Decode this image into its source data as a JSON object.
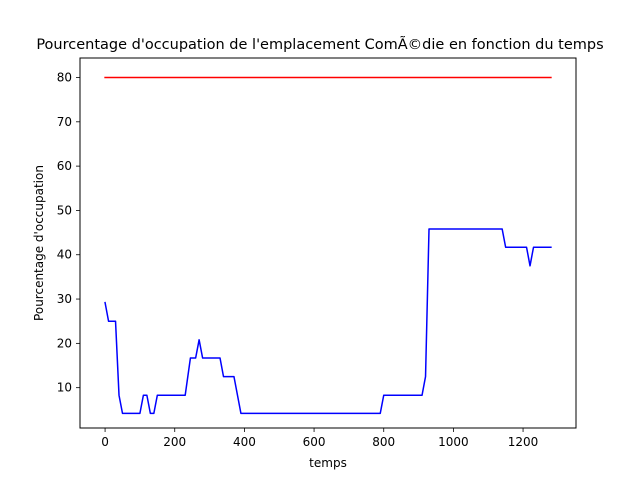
{
  "chart_data": {
    "type": "line",
    "title": "Pourcentage d'occupation de l'emplacement ComÃ©die en fonction du temps",
    "xlabel": "temps",
    "ylabel": "Pourcentage d'occupation",
    "xlim": [
      -72,
      1352
    ],
    "ylim": [
      0.9,
      84.4
    ],
    "xticks": [
      0,
      200,
      400,
      600,
      800,
      1000,
      1200
    ],
    "yticks": [
      10,
      20,
      30,
      40,
      50,
      60,
      70,
      80
    ],
    "grid": false,
    "colors": {
      "occupation": "#0000ff",
      "threshold": "#ff0000"
    },
    "series": [
      {
        "values_xy": [
          [
            0,
            29.2
          ],
          [
            10,
            25.0
          ],
          [
            30,
            25.0
          ],
          [
            40,
            8.3
          ],
          [
            50,
            4.2
          ],
          [
            100,
            4.2
          ],
          [
            110,
            8.3
          ],
          [
            120,
            8.3
          ],
          [
            130,
            4.2
          ],
          [
            140,
            4.2
          ],
          [
            150,
            8.3
          ],
          [
            230,
            8.3
          ],
          [
            245,
            16.7
          ],
          [
            260,
            16.7
          ],
          [
            270,
            20.8
          ],
          [
            280,
            16.7
          ],
          [
            330,
            16.7
          ],
          [
            340,
            12.5
          ],
          [
            370,
            12.5
          ],
          [
            390,
            4.2
          ],
          [
            790,
            4.2
          ],
          [
            800,
            8.3
          ],
          [
            910,
            8.3
          ],
          [
            920,
            12.5
          ],
          [
            930,
            45.8
          ],
          [
            1140,
            45.8
          ],
          [
            1150,
            41.7
          ],
          [
            1210,
            41.7
          ],
          [
            1220,
            37.5
          ],
          [
            1230,
            41.7
          ],
          [
            1280,
            41.7
          ]
        ]
      },
      {
        "values_xy": [
          [
            0,
            80
          ],
          [
            1280,
            80
          ]
        ]
      }
    ]
  }
}
